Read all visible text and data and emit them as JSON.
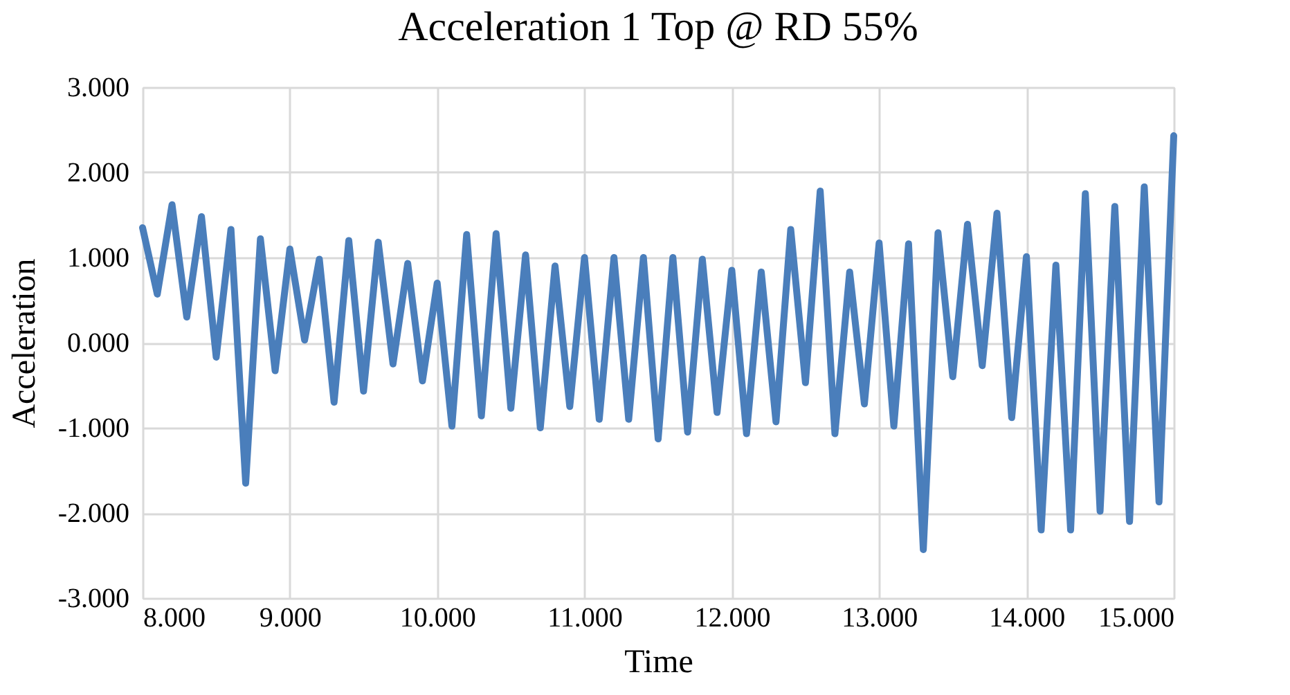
{
  "chart_data": {
    "type": "line",
    "title": "Acceleration 1 Top @ RD 55%",
    "xlabel": "Time",
    "ylabel": "Acceleration",
    "x": [
      8.0,
      8.1,
      8.2,
      8.3,
      8.4,
      8.5,
      8.6,
      8.7,
      8.8,
      8.9,
      9.0,
      9.1,
      9.2,
      9.3,
      9.4,
      9.5,
      9.6,
      9.7,
      9.8,
      9.9,
      10.0,
      10.1,
      10.2,
      10.3,
      10.4,
      10.5,
      10.6,
      10.7,
      10.8,
      10.9,
      11.0,
      11.1,
      11.2,
      11.3,
      11.4,
      11.5,
      11.6,
      11.7,
      11.8,
      11.9,
      12.0,
      12.1,
      12.2,
      12.3,
      12.4,
      12.5,
      12.6,
      12.7,
      12.8,
      12.9,
      13.0,
      13.1,
      13.2,
      13.3,
      13.4,
      13.5,
      13.6,
      13.7,
      13.8,
      13.9,
      14.0,
      14.1,
      14.2,
      14.3,
      14.4,
      14.5,
      14.6,
      14.7,
      14.8,
      14.9,
      15.0
    ],
    "series": [
      {
        "color": "#4a7ebb",
        "values": [
          1.35,
          0.57,
          1.62,
          0.3,
          1.48,
          -0.17,
          1.33,
          -1.65,
          1.22,
          -0.33,
          1.1,
          0.03,
          0.98,
          -0.7,
          1.2,
          -0.57,
          1.18,
          -0.25,
          0.93,
          -0.45,
          0.7,
          -0.98,
          1.27,
          -0.86,
          1.28,
          -0.77,
          1.03,
          -1.0,
          0.9,
          -0.75,
          1.0,
          -0.9,
          1.0,
          -0.9,
          1.0,
          -1.13,
          1.0,
          -1.05,
          0.98,
          -0.82,
          0.85,
          -1.07,
          0.83,
          -0.93,
          1.33,
          -0.47,
          1.78,
          -1.07,
          0.83,
          -0.72,
          1.17,
          -0.98,
          1.16,
          -2.43,
          1.29,
          -0.4,
          1.39,
          -0.27,
          1.52,
          -0.88,
          1.01,
          -2.2,
          0.91,
          -2.2,
          1.75,
          -1.98,
          1.6,
          -2.1,
          1.83,
          -1.87,
          2.43
        ]
      }
    ],
    "xlim": [
      8.0,
      15.0
    ],
    "xticks": [
      {
        "value": 8,
        "label": "8.000"
      },
      {
        "value": 9,
        "label": "9.000"
      },
      {
        "value": 10,
        "label": "10.000"
      },
      {
        "value": 11,
        "label": "11.000"
      },
      {
        "value": 12,
        "label": "12.000"
      },
      {
        "value": 13,
        "label": "13.000"
      },
      {
        "value": 14,
        "label": "14.000"
      },
      {
        "value": 15,
        "label": "15.000"
      }
    ],
    "ylim": [
      -3.0,
      3.0
    ],
    "yticks": [
      {
        "value": -3,
        "label": "-3.000"
      },
      {
        "value": -2,
        "label": "-2.000"
      },
      {
        "value": -1,
        "label": "-1.000"
      },
      {
        "value": 0,
        "label": "0.000"
      },
      {
        "value": 1,
        "label": "1.000"
      },
      {
        "value": 2,
        "label": "2.000"
      },
      {
        "value": 3,
        "label": "3.000"
      }
    ],
    "grid": true,
    "legend": false,
    "marker": "none",
    "line_style": "solid"
  }
}
